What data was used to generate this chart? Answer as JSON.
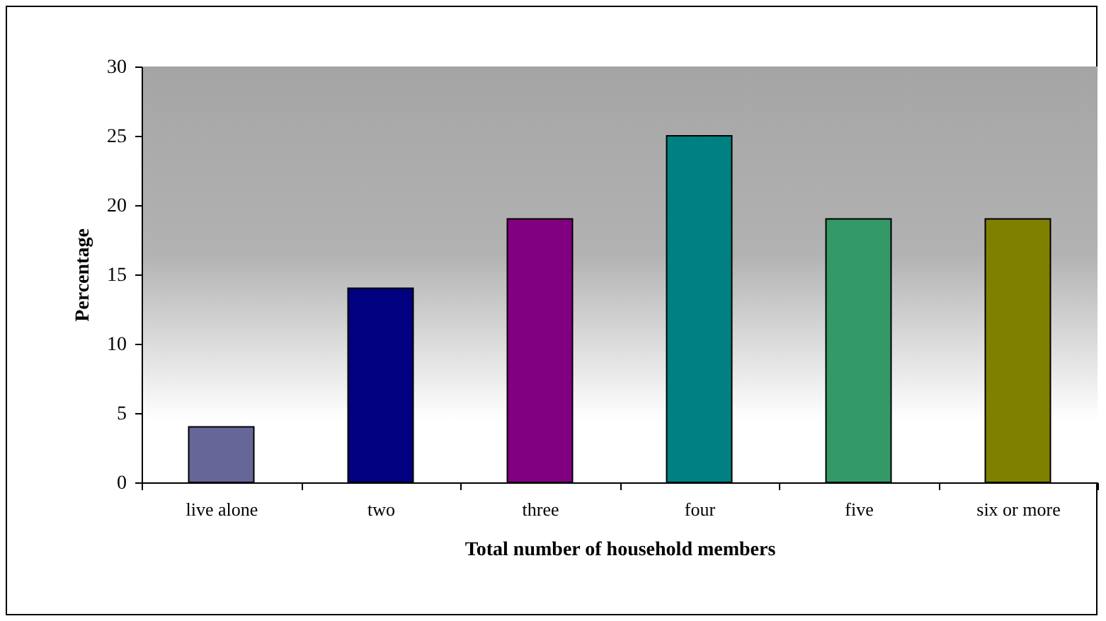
{
  "chart_data": {
    "type": "bar",
    "xlabel": "Total number of household members",
    "ylabel": "Percentage",
    "categories": [
      "live alone",
      "two",
      "three",
      "four",
      "five",
      "six or more"
    ],
    "values": [
      4,
      14,
      19,
      25,
      19,
      19
    ],
    "colors": [
      "#666699",
      "#000080",
      "#800080",
      "#008080",
      "#339966",
      "#808000"
    ],
    "ylim": [
      0,
      30
    ],
    "yticks": [
      0,
      5,
      10,
      15,
      20,
      25,
      30
    ],
    "grid": false
  }
}
